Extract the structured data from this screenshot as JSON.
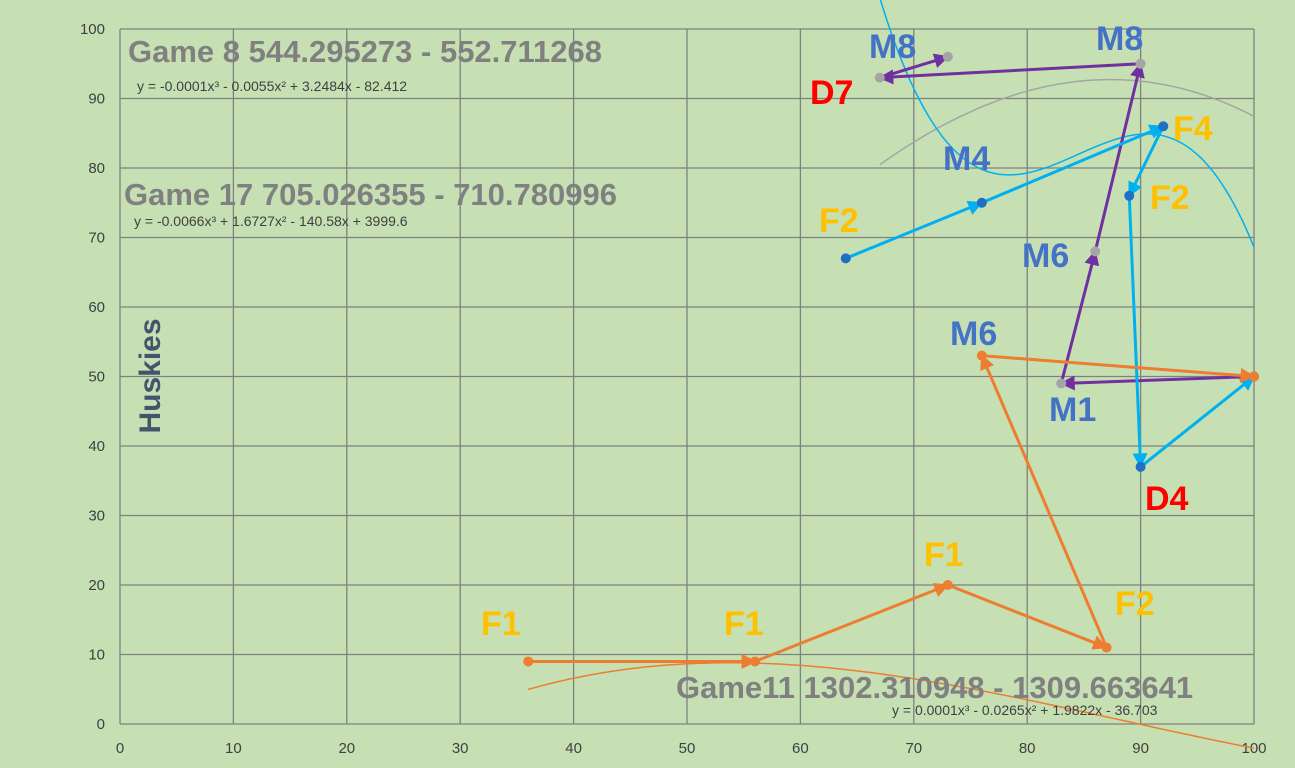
{
  "chart_data": {
    "type": "scatter",
    "ylabel": "Huskies",
    "xlim": [
      0,
      100
    ],
    "ylim": [
      0,
      100
    ],
    "xticks": [
      "0",
      "10",
      "20",
      "30",
      "40",
      "50",
      "60",
      "70",
      "80",
      "90",
      "100"
    ],
    "yticks": [
      "0",
      "10",
      "20",
      "30",
      "40",
      "50",
      "60",
      "70",
      "80",
      "90",
      "100"
    ],
    "grid": true,
    "series": [
      {
        "title": "Game 8 544.295273 -  552.711268",
        "equation": "y = -0.0001x³ - 0.0055x² + 3.2484x - 82.412",
        "color": "#a5a5a5",
        "arrow_color": "#7030a0",
        "trend_color": "#a5a5a5",
        "trend": [
          -0.0001,
          -0.0055,
          3.2484,
          -82.412
        ],
        "trend_range": [
          67,
          100
        ],
        "points": [
          {
            "x": 100,
            "y": 50,
            "label": ""
          },
          {
            "x": 83,
            "y": 49,
            "label": "M1"
          },
          {
            "x": 86,
            "y": 68,
            "label": "M6"
          },
          {
            "x": 90,
            "y": 95,
            "label": "M8"
          },
          {
            "x": 67,
            "y": 93,
            "label": "D7"
          },
          {
            "x": 73,
            "y": 96,
            "label": "M8"
          }
        ]
      },
      {
        "title": "Game 17 705.026355 -  710.780996",
        "equation": "y = -0.0066x³ + 1.6727x² - 140.58x + 3999.6",
        "color": "#1f6fc5",
        "arrow_color": "#00b0f0",
        "trend_color": "#00b0f0",
        "trend": [
          -0.0066,
          1.6727,
          -140.58,
          3999.6
        ],
        "trend_range": [
          64,
          100
        ],
        "points": [
          {
            "x": 64,
            "y": 67,
            "label": "F2"
          },
          {
            "x": 76,
            "y": 75,
            "label": "M4"
          },
          {
            "x": 92,
            "y": 86,
            "label": "F4"
          },
          {
            "x": 89,
            "y": 76,
            "label": "F2"
          },
          {
            "x": 90,
            "y": 37,
            "label": "D4"
          },
          {
            "x": 100,
            "y": 50,
            "label": ""
          }
        ]
      },
      {
        "title": "Game11 1302.310948 -  1309.663641",
        "equation": "y = 0.0001x³ - 0.0265x² + 1.9822x - 36.703",
        "color": "#ed7d31",
        "arrow_color": "#ed7d31",
        "trend_color": "#ed7d31",
        "trend": [
          0.0001,
          -0.0265,
          1.9822,
          -36.703
        ],
        "trend_range": [
          36,
          100
        ],
        "points": [
          {
            "x": 36,
            "y": 9,
            "label": "F1"
          },
          {
            "x": 56,
            "y": 9,
            "label": "F1"
          },
          {
            "x": 73,
            "y": 20,
            "label": "F1"
          },
          {
            "x": 87,
            "y": 11,
            "label": "F2"
          },
          {
            "x": 76,
            "y": 53,
            "label": "M6"
          },
          {
            "x": 100,
            "y": 50,
            "label": ""
          }
        ]
      }
    ]
  },
  "label_colors": {
    "M": "#4472c4",
    "F": "#ffc000",
    "D": "#ff0000"
  }
}
